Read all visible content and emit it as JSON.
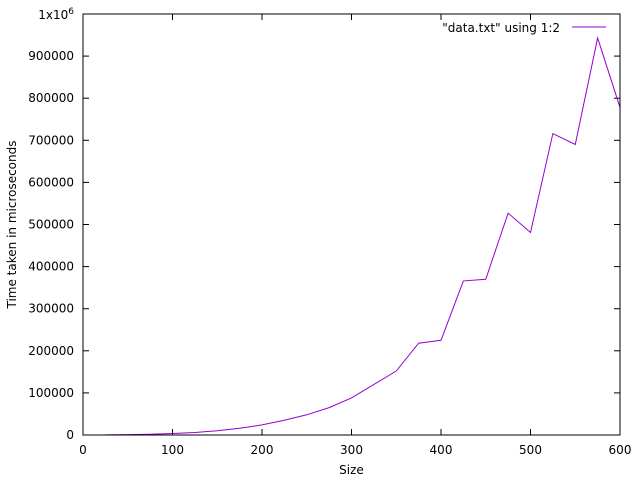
{
  "chart_data": {
    "type": "line",
    "title": "",
    "xlabel": "Size",
    "ylabel": "Time taken in microseconds",
    "xlim": [
      0,
      600
    ],
    "ylim": [
      0,
      1000000
    ],
    "grid": false,
    "legend_position": "top-right",
    "x_ticks": [
      "0",
      "100",
      "200",
      "300",
      "400",
      "500",
      "600"
    ],
    "y_ticks": [
      "0",
      "100000",
      "200000",
      "300000",
      "400000",
      "500000",
      "600000",
      "700000",
      "800000",
      "900000"
    ],
    "y_top_tick": {
      "base": "1x10",
      "exponent": "6"
    },
    "series": [
      {
        "name": "\"data.txt\" using 1:2",
        "color": "#9400d3",
        "x": [
          25,
          50,
          75,
          100,
          125,
          150,
          175,
          200,
          225,
          250,
          275,
          300,
          325,
          350,
          375,
          400,
          425,
          450,
          475,
          500,
          525,
          550,
          575,
          600
        ],
        "y": [
          200,
          800,
          1800,
          3500,
          6000,
          10000,
          16000,
          24000,
          35000,
          48000,
          65000,
          88000,
          120000,
          152000,
          218000,
          225000,
          366000,
          370000,
          527000,
          481000,
          716000,
          690000,
          943000,
          778000
        ]
      }
    ]
  }
}
